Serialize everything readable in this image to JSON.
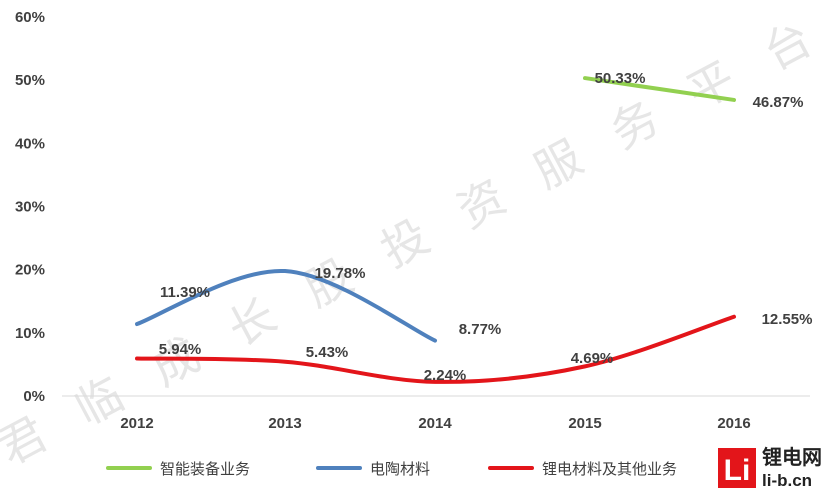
{
  "chart_data": {
    "type": "line",
    "categories": [
      "2012",
      "2013",
      "2014",
      "2015",
      "2016"
    ],
    "y_ticks": [
      "0%",
      "10%",
      "20%",
      "30%",
      "40%",
      "50%",
      "60%"
    ],
    "ylim": [
      0,
      60
    ],
    "y_unit": "%",
    "grid": false,
    "legend_position": "bottom",
    "series": [
      {
        "name": "智能装备业务",
        "color": "#92d050",
        "values": [
          null,
          null,
          null,
          50.33,
          46.87
        ],
        "labels": [
          null,
          null,
          null,
          "50.33%",
          "46.87%"
        ]
      },
      {
        "name": "电陶材料",
        "color": "#4f81bd",
        "values": [
          11.39,
          19.78,
          8.77,
          null,
          null
        ],
        "labels": [
          "11.39%",
          "19.78%",
          "8.77%",
          null,
          null
        ]
      },
      {
        "name": "锂电材料及其他业务",
        "color": "#e3151a",
        "values": [
          5.94,
          5.43,
          2.24,
          4.69,
          12.55
        ],
        "labels": [
          "5.94%",
          "5.43%",
          "2.24%",
          "4.69%",
          "12.55%"
        ]
      }
    ]
  },
  "watermark": "君临成长股投资服务平台",
  "logo": {
    "mark": "Li",
    "name": "锂电网",
    "url": "li-b.cn",
    "color": "#e3151a"
  }
}
